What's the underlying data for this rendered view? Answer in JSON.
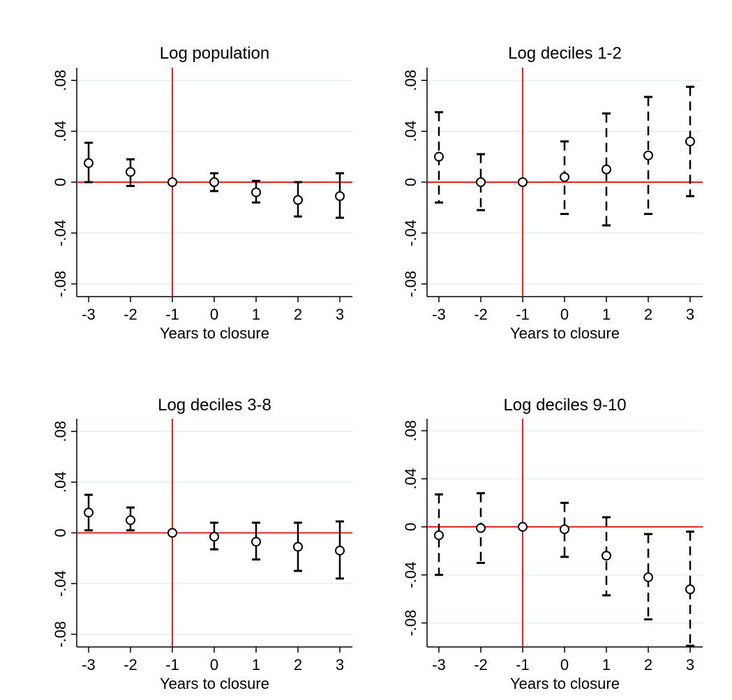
{
  "colors": {
    "background": "#ffffff",
    "grid": "#e8eef0",
    "reference_line": "#e8211c",
    "marker": "#000000"
  },
  "chart_data": [
    {
      "type": "scatter",
      "title": "Log population",
      "xlabel": "Years to closure",
      "ylabel": "",
      "x": [
        -3,
        -2,
        -1,
        0,
        1,
        2,
        3
      ],
      "x_ticks": [
        "-3",
        "-2",
        "-1",
        "0",
        "1",
        "2",
        "3"
      ],
      "y_ticks": [
        0.08,
        0.04,
        0,
        -0.04,
        -0.08
      ],
      "y_tick_labels": [
        ".08",
        ".04",
        "0",
        "-.04",
        "-.08"
      ],
      "ylim": [
        -0.09,
        0.09
      ],
      "ci_style": "solid",
      "vline_x": -1,
      "hline_y": 0,
      "grid": true,
      "series": [
        {
          "estimate": [
            0.015,
            0.008,
            0,
            0,
            -0.008,
            -0.014,
            -0.011
          ],
          "ci_low": [
            0,
            -0.003,
            0,
            -0.007,
            -0.016,
            -0.027,
            -0.028
          ],
          "ci_high": [
            0.031,
            0.018,
            0,
            0.007,
            0.001,
            0,
            0.007
          ]
        }
      ]
    },
    {
      "type": "scatter",
      "title": "Log deciles 1-2",
      "xlabel": "Years to closure",
      "ylabel": "",
      "x": [
        -3,
        -2,
        -1,
        0,
        1,
        2,
        3
      ],
      "x_ticks": [
        "-3",
        "-2",
        "-1",
        "0",
        "1",
        "2",
        "3"
      ],
      "y_ticks": [
        0.08,
        0.04,
        0,
        -0.04,
        -0.08
      ],
      "y_tick_labels": [
        ".08",
        ".04",
        "0",
        "-.04",
        "-.08"
      ],
      "ylim": [
        -0.09,
        0.09
      ],
      "ci_style": "dashed",
      "vline_x": -1,
      "hline_y": 0,
      "grid": true,
      "series": [
        {
          "estimate": [
            0.02,
            0,
            0,
            0.004,
            0.01,
            0.021,
            0.032
          ],
          "ci_low": [
            -0.016,
            -0.022,
            0,
            -0.025,
            -0.034,
            -0.025,
            -0.011
          ],
          "ci_high": [
            0.055,
            0.022,
            0,
            0.032,
            0.054,
            0.067,
            0.075
          ]
        }
      ]
    },
    {
      "type": "scatter",
      "title": "Log deciles 3-8",
      "xlabel": "Years to closure",
      "ylabel": "",
      "x": [
        -3,
        -2,
        -1,
        0,
        1,
        2,
        3
      ],
      "x_ticks": [
        "-3",
        "-2",
        "-1",
        "0",
        "1",
        "2",
        "3"
      ],
      "y_ticks": [
        0.08,
        0.04,
        0,
        -0.04,
        -0.08
      ],
      "y_tick_labels": [
        ".08",
        ".04",
        "0",
        "-.04",
        "-.08"
      ],
      "ylim": [
        -0.09,
        0.09
      ],
      "ci_style": "solid",
      "vline_x": -1,
      "hline_y": 0,
      "grid": true,
      "series": [
        {
          "estimate": [
            0.016,
            0.01,
            0,
            -0.003,
            -0.007,
            -0.011,
            -0.014
          ],
          "ci_low": [
            0.002,
            0.002,
            0,
            -0.013,
            -0.021,
            -0.03,
            -0.036
          ],
          "ci_high": [
            0.03,
            0.02,
            0,
            0.008,
            0.008,
            0.008,
            0.009
          ]
        }
      ]
    },
    {
      "type": "scatter",
      "title": "Log deciles 9-10",
      "xlabel": "Years to closure",
      "ylabel": "",
      "x": [
        -3,
        -2,
        -1,
        0,
        1,
        2,
        3
      ],
      "x_ticks": [
        "-3",
        "-2",
        "-1",
        "0",
        "1",
        "2",
        "3"
      ],
      "y_ticks": [
        0.08,
        0.04,
        0,
        -0.04,
        -0.08
      ],
      "y_tick_labels": [
        ".08",
        ".04",
        "0",
        "-.04",
        "-.08"
      ],
      "ylim": [
        -0.1,
        0.09
      ],
      "ci_style": "dashed",
      "vline_x": -1,
      "hline_y": 0,
      "grid": true,
      "series": [
        {
          "estimate": [
            -0.007,
            -0.001,
            0,
            -0.002,
            -0.024,
            -0.042,
            -0.052
          ],
          "ci_low": [
            -0.04,
            -0.03,
            0,
            -0.025,
            -0.057,
            -0.077,
            -0.099
          ],
          "ci_high": [
            0.027,
            0.028,
            0,
            0.02,
            0.008,
            -0.006,
            -0.004
          ]
        }
      ]
    }
  ]
}
